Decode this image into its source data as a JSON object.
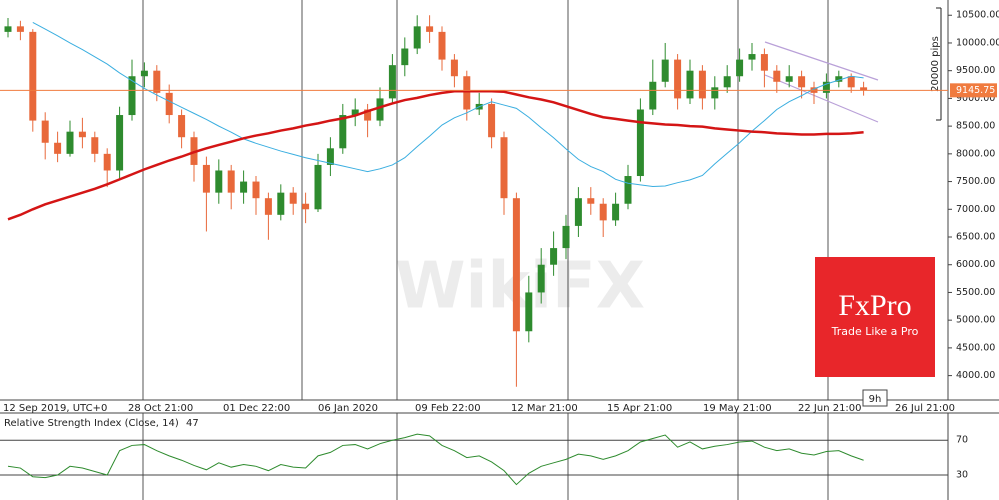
{
  "chart_data": [
    {
      "type": "candlestick",
      "open": [
        10200,
        10300,
        10200,
        8600,
        8200,
        8000,
        8400,
        8300,
        8000,
        7700,
        8700,
        9400,
        9500,
        9100,
        8700,
        8300,
        7800,
        7300,
        7700,
        7300,
        7500,
        7200,
        6900,
        7300,
        7100,
        7000,
        7800,
        8100,
        8700,
        8800,
        8600,
        9000,
        9600,
        9900,
        10300,
        10200,
        9700,
        9400,
        8800,
        8900,
        8300,
        7200,
        4800,
        5500,
        6000,
        6300,
        6700,
        7200,
        7100,
        6800,
        7100,
        7600,
        8800,
        9300,
        9700,
        9000,
        9500,
        9000,
        9200,
        9400,
        9700,
        9800,
        9500,
        9300,
        9400,
        9200,
        9100,
        9300,
        9400,
        9200
      ],
      "high": [
        10450,
        10400,
        10250,
        8750,
        8400,
        8600,
        8650,
        8400,
        8100,
        8850,
        9700,
        9650,
        9600,
        9250,
        8800,
        8400,
        7950,
        7900,
        7800,
        7700,
        7600,
        7300,
        7450,
        7400,
        7300,
        8000,
        8300,
        8900,
        9000,
        8900,
        9200,
        9800,
        10100,
        10500,
        10500,
        10300,
        9800,
        9500,
        9100,
        9000,
        8400,
        7300,
        5800,
        6300,
        6600,
        6900,
        7400,
        7400,
        7200,
        7300,
        7800,
        9000,
        9700,
        10000,
        9800,
        9700,
        9600,
        9400,
        9600,
        9900,
        10000,
        9900,
        9600,
        9600,
        9500,
        9300,
        9450,
        9500,
        9450,
        9300
      ],
      "low": [
        10100,
        10050,
        8400,
        7900,
        7850,
        7950,
        8100,
        7850,
        7400,
        7550,
        8600,
        9200,
        8950,
        8550,
        8100,
        7500,
        6600,
        7100,
        7000,
        7100,
        6900,
        6450,
        6800,
        6900,
        6750,
        6950,
        7600,
        8000,
        8500,
        8300,
        8500,
        8900,
        9400,
        9800,
        10000,
        9500,
        9200,
        8600,
        8700,
        8100,
        6900,
        3800,
        4600,
        5300,
        5800,
        6100,
        6500,
        6900,
        6500,
        6700,
        7000,
        7500,
        8700,
        9200,
        8800,
        8900,
        8800,
        8800,
        9100,
        9300,
        9500,
        9200,
        9100,
        9200,
        9000,
        8900,
        9000,
        9200,
        9100,
        9050
      ],
      "close": [
        10300,
        10200,
        8600,
        8200,
        8000,
        8400,
        8300,
        8000,
        7700,
        8700,
        9400,
        9500,
        9100,
        8700,
        8300,
        7800,
        7300,
        7700,
        7300,
        7500,
        7200,
        6900,
        7300,
        7100,
        7000,
        7800,
        8100,
        8700,
        8800,
        8600,
        9000,
        9600,
        9900,
        10300,
        10200,
        9700,
        9400,
        8800,
        8900,
        8300,
        7200,
        4800,
        5500,
        6000,
        6300,
        6700,
        7200,
        7100,
        6800,
        7100,
        7600,
        8800,
        9300,
        9700,
        9000,
        9500,
        9000,
        9200,
        9400,
        9700,
        9800,
        9500,
        9300,
        9400,
        9200,
        9100,
        9300,
        9400,
        9200,
        9145.75
      ],
      "up_color": "#2e8b2e",
      "down_color": "#e8683a",
      "last_price_color": "#f07b3f",
      "series": [
        {
          "color": "#3aaee0",
          "values": [
            null,
            null,
            10370,
            10250,
            10130,
            10000,
            9880,
            9750,
            9620,
            9460,
            9320,
            9180,
            9060,
            8950,
            8840,
            8730,
            8620,
            8500,
            8390,
            8270,
            8190,
            8120,
            8050,
            7990,
            7930,
            7880,
            7830,
            7780,
            7730,
            7680,
            7730,
            7800,
            7930,
            8130,
            8320,
            8520,
            8650,
            8740,
            8850,
            8940,
            8880,
            8820,
            8660,
            8470,
            8290,
            8090,
            7900,
            7770,
            7680,
            7540,
            7470,
            7440,
            7410,
            7420,
            7480,
            7530,
            7610,
            7820,
            8010,
            8200,
            8410,
            8600,
            8800,
            8940,
            9050,
            9170,
            9260,
            9330,
            9400,
            9370
          ]
        },
        {
          "color": "#d41515",
          "values": [
            6820,
            6900,
            7000,
            7090,
            7160,
            7230,
            7300,
            7370,
            7450,
            7540,
            7630,
            7720,
            7800,
            7880,
            7950,
            8030,
            8100,
            8160,
            8220,
            8280,
            8330,
            8370,
            8420,
            8460,
            8510,
            8550,
            8600,
            8640,
            8690,
            8770,
            8840,
            8910,
            8970,
            9010,
            9060,
            9100,
            9130,
            9130,
            9130,
            9130,
            9120,
            9070,
            9020,
            8980,
            8930,
            8860,
            8790,
            8720,
            8660,
            8630,
            8600,
            8570,
            8550,
            8530,
            8520,
            8500,
            8490,
            8460,
            8440,
            8420,
            8400,
            8390,
            8370,
            8360,
            8350,
            8350,
            8360,
            8360,
            8370,
            8390
          ]
        }
      ],
      "ylim": [
        3560,
        10775
      ],
      "yticks": [
        {
          "value": 10500,
          "label": "10500.00"
        },
        {
          "value": 10000,
          "label": "10000.00"
        },
        {
          "value": 9500,
          "label": "9500.00"
        },
        {
          "value": 9000,
          "label": "9000.00"
        },
        {
          "value": 8500,
          "label": "8500.00"
        },
        {
          "value": 8000,
          "label": "8000.00"
        },
        {
          "value": 7500,
          "label": "7500.00"
        },
        {
          "value": 7000,
          "label": "7000.00"
        },
        {
          "value": 6500,
          "label": "6500.00"
        },
        {
          "value": 6000,
          "label": "6000.00"
        },
        {
          "value": 5500,
          "label": "5500.00"
        },
        {
          "value": 5000,
          "label": "5000.00"
        },
        {
          "value": 4500,
          "label": "4500.00"
        },
        {
          "value": 4000,
          "label": "4000.00"
        }
      ],
      "x_labels": [
        "12 Sep 2019, UTC+0",
        "28 Oct 21:00",
        "01 Dec 22:00",
        "06 Jan 2020",
        "09 Feb 22:00",
        "12 Mar 21:00",
        "15 Apr 21:00",
        "19 May 21:00",
        "22 Jun 21:00",
        "26 Jul 21:00"
      ],
      "annotations": {
        "range": "20000 pips",
        "timeframe": "9h"
      }
    },
    {
      "type": "line",
      "title": "Relative Strength Index (Close, 14)",
      "color": "#2e8b2e",
      "values": [
        40,
        38,
        28,
        27,
        30,
        40,
        38,
        34,
        30,
        58,
        64,
        65,
        58,
        52,
        47,
        41,
        36,
        44,
        39,
        42,
        40,
        35,
        42,
        39,
        38,
        52,
        56,
        64,
        65,
        60,
        66,
        70,
        73,
        77,
        75,
        64,
        58,
        50,
        52,
        45,
        35,
        19,
        32,
        40,
        44,
        48,
        54,
        52,
        48,
        52,
        58,
        68,
        72,
        76,
        62,
        68,
        60,
        63,
        65,
        68,
        69,
        62,
        58,
        60,
        55,
        53,
        57,
        58,
        52,
        47
      ],
      "ylim": [
        7,
        99
      ],
      "yticks": [
        30,
        70
      ]
    }
  ],
  "watermark": "WikiFX",
  "logo": {
    "name": "FxPro",
    "tagline": "Trade Like a Pro"
  }
}
